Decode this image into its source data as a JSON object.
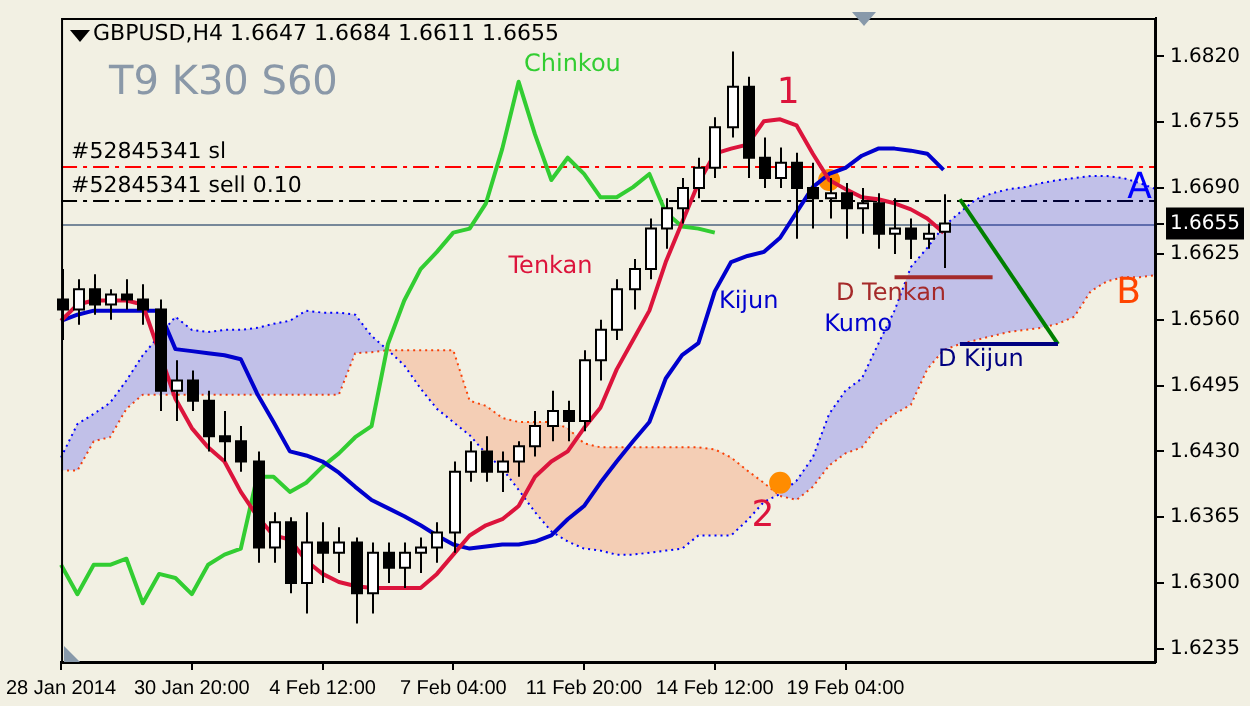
{
  "chart_data": {
    "type": "candlestick",
    "title": "GBPUSD,H4 1.6647 1.6684 1.6611 1.6655",
    "subtitle": "T9 K30 S60",
    "categories": [
      "28 Jan 2014",
      null,
      null,
      null,
      null,
      null,
      null,
      null,
      "30 Jan 20:00",
      null,
      null,
      null,
      null,
      null,
      null,
      null,
      "4 Feb 12:00",
      null,
      null,
      null,
      null,
      null,
      null,
      null,
      "7 Feb 04:00",
      null,
      null,
      null,
      null,
      null,
      null,
      null,
      "11 Feb 20:00",
      null,
      null,
      null,
      null,
      null,
      null,
      null,
      "14 Feb 12:00",
      null,
      null,
      null,
      null,
      null,
      null,
      null,
      "19 Feb 04:00",
      null,
      null,
      null,
      null,
      null,
      null,
      null,
      null,
      null,
      null,
      null,
      null,
      null,
      null,
      null,
      null,
      null,
      null,
      null
    ],
    "ohlc": [
      [
        1.658,
        1.661,
        1.654,
        1.657
      ],
      [
        1.657,
        1.66,
        1.6555,
        1.659
      ],
      [
        1.659,
        1.6605,
        1.6565,
        1.6575
      ],
      [
        1.6575,
        1.659,
        1.656,
        1.6585
      ],
      [
        1.6585,
        1.66,
        1.657,
        1.658
      ],
      [
        1.658,
        1.6595,
        1.6555,
        1.657
      ],
      [
        1.657,
        1.658,
        1.647,
        1.649
      ],
      [
        1.649,
        1.652,
        1.646,
        1.65
      ],
      [
        1.65,
        1.651,
        1.647,
        1.648
      ],
      [
        1.648,
        1.649,
        1.643,
        1.6445
      ],
      [
        1.6445,
        1.647,
        1.642,
        1.644
      ],
      [
        1.644,
        1.6455,
        1.641,
        1.642
      ],
      [
        1.642,
        1.643,
        1.632,
        1.6335
      ],
      [
        1.6335,
        1.637,
        1.632,
        1.636
      ],
      [
        1.636,
        1.6365,
        1.629,
        1.63
      ],
      [
        1.63,
        1.637,
        1.627,
        1.634
      ],
      [
        1.634,
        1.636,
        1.63,
        1.633
      ],
      [
        1.633,
        1.6355,
        1.631,
        1.634
      ],
      [
        1.634,
        1.6345,
        1.626,
        1.629
      ],
      [
        1.629,
        1.634,
        1.627,
        1.633
      ],
      [
        1.633,
        1.634,
        1.63,
        1.6315
      ],
      [
        1.6315,
        1.634,
        1.6295,
        1.633
      ],
      [
        1.633,
        1.6345,
        1.631,
        1.6335
      ],
      [
        1.6335,
        1.636,
        1.632,
        1.635
      ],
      [
        1.635,
        1.642,
        1.633,
        1.641
      ],
      [
        1.641,
        1.644,
        1.64,
        1.643
      ],
      [
        1.643,
        1.6445,
        1.64,
        1.641
      ],
      [
        1.641,
        1.643,
        1.639,
        1.642
      ],
      [
        1.642,
        1.644,
        1.6405,
        1.6435
      ],
      [
        1.6435,
        1.647,
        1.6425,
        1.6455
      ],
      [
        1.6455,
        1.649,
        1.644,
        1.647
      ],
      [
        1.647,
        1.648,
        1.644,
        1.646
      ],
      [
        1.646,
        1.653,
        1.645,
        1.652
      ],
      [
        1.652,
        1.656,
        1.65,
        1.655
      ],
      [
        1.655,
        1.66,
        1.654,
        1.659
      ],
      [
        1.659,
        1.662,
        1.657,
        1.661
      ],
      [
        1.661,
        1.666,
        1.66,
        1.665
      ],
      [
        1.665,
        1.668,
        1.663,
        1.667
      ],
      [
        1.667,
        1.67,
        1.6655,
        1.669
      ],
      [
        1.669,
        1.672,
        1.668,
        1.671
      ],
      [
        1.671,
        1.676,
        1.67,
        1.675
      ],
      [
        1.675,
        1.6825,
        1.674,
        1.679
      ],
      [
        1.679,
        1.68,
        1.67,
        1.672
      ],
      [
        1.672,
        1.674,
        1.669,
        1.67
      ],
      [
        1.67,
        1.673,
        1.669,
        1.6715
      ],
      [
        1.6715,
        1.6725,
        1.664,
        1.669
      ],
      [
        1.669,
        1.6715,
        1.665,
        1.668
      ],
      [
        1.668,
        1.67,
        1.666,
        1.6685
      ],
      [
        1.6685,
        1.6695,
        1.664,
        1.667
      ],
      [
        1.667,
        1.669,
        1.6645,
        1.6675
      ],
      [
        1.6675,
        1.6685,
        1.663,
        1.6645
      ],
      [
        1.6645,
        1.668,
        1.6625,
        1.665
      ],
      [
        1.665,
        1.666,
        1.662,
        1.664
      ],
      [
        1.664,
        1.6655,
        1.663,
        1.6645
      ],
      [
        1.6647,
        1.6684,
        1.6611,
        1.6655
      ],
      null,
      null,
      null,
      null,
      null,
      null,
      null,
      null,
      null,
      null,
      null,
      null,
      null
    ],
    "series": [
      {
        "name": "Tenkan",
        "type": "line",
        "color": "#dc143c",
        "values": [
          1.6559,
          1.6575,
          1.6579,
          1.6579,
          1.6579,
          1.6575,
          null,
          1.6482,
          1.6453,
          1.6434,
          1.642,
          1.639,
          1.6366,
          1.6347,
          1.6343,
          1.6322,
          1.6309,
          1.6301,
          1.6297,
          1.6295,
          1.6295,
          1.6295,
          1.6295,
          1.6309,
          1.6328,
          1.6347,
          1.6357,
          1.6363,
          1.6376,
          1.6405,
          1.642,
          1.643,
          1.6453,
          1.6473,
          1.6511,
          1.654,
          1.6569,
          1.6617,
          1.6656,
          1.6695,
          1.6724,
          1.6729,
          1.6733,
          1.6756,
          1.6758,
          1.6752,
          1.6724,
          1.6698,
          1.6689,
          1.6681,
          1.6679,
          1.6675,
          1.6669,
          1.666,
          1.6646,
          null,
          null,
          null,
          null,
          null,
          null,
          null,
          null,
          null,
          null,
          null,
          null,
          null
        ]
      },
      {
        "name": "Kijun",
        "type": "line",
        "color": "#0000cd",
        "values": [
          1.6559,
          1.6565,
          1.6569,
          1.6569,
          1.6569,
          1.6569,
          1.6569,
          1.6531,
          1.6529,
          1.6527,
          1.6525,
          1.6521,
          1.6487,
          1.6459,
          1.643,
          1.6426,
          1.642,
          1.6409,
          1.6395,
          1.6382,
          1.6374,
          1.6366,
          1.6357,
          1.6347,
          1.6338,
          1.6334,
          1.6336,
          1.6338,
          1.6338,
          1.6341,
          1.6347,
          1.6363,
          1.6376,
          1.6399,
          1.642,
          1.644,
          1.6459,
          1.6502,
          1.6525,
          1.6537,
          1.6588,
          1.6617,
          1.6623,
          1.6627,
          1.6641,
          1.6666,
          1.6691,
          1.6704,
          1.671,
          1.6722,
          1.6729,
          1.6729,
          1.6727,
          1.6724,
          1.6708,
          null,
          null,
          null,
          null,
          null,
          null,
          null,
          null,
          null,
          null,
          null,
          null,
          null
        ]
      },
      {
        "name": "Chinkou",
        "type": "line",
        "color": "#32cd32",
        "values": [
          1.6318,
          1.6289,
          1.6318,
          1.6318,
          1.6324,
          1.628,
          1.6309,
          1.6305,
          1.6289,
          1.6318,
          1.6328,
          1.6334,
          1.6405,
          1.6405,
          1.639,
          1.6399,
          1.6415,
          1.6428,
          1.6444,
          1.6455,
          1.6536,
          1.6579,
          1.661,
          1.6627,
          1.6646,
          1.665,
          1.6675,
          1.6729,
          1.6795,
          1.6743,
          1.6698,
          1.672,
          1.6704,
          1.6681,
          1.6681,
          1.6691,
          1.6704,
          1.6666,
          1.6652,
          1.665,
          1.6646,
          null,
          null,
          null,
          null,
          null,
          null,
          null,
          null,
          null,
          null,
          null,
          null,
          null,
          null,
          null,
          null,
          null,
          null,
          null,
          null,
          null,
          null,
          null,
          null,
          null,
          null,
          null
        ]
      },
      {
        "name": "A",
        "type": "line",
        "color": "#0000ff",
        "line_style": "dotted",
        "values": [
          1.6424,
          1.6457,
          1.6467,
          1.6478,
          1.65,
          1.6525,
          null,
          1.6563,
          1.655,
          1.6548,
          1.655,
          1.655,
          1.6552,
          1.6556,
          1.6559,
          1.6569,
          1.6567,
          1.6567,
          1.6565,
          1.6544,
          1.653,
          1.6515,
          1.6492,
          1.6472,
          1.6459,
          1.6446,
          1.6428,
          1.6413,
          1.6392,
          1.637,
          1.6351,
          1.6341,
          1.6334,
          1.6332,
          1.6328,
          1.6328,
          1.633,
          1.6332,
          1.6334,
          1.6347,
          1.6347,
          1.6347,
          1.6362,
          1.638,
          1.6388,
          1.6401,
          1.6424,
          1.6467,
          1.649,
          1.6502,
          1.6536,
          1.6569,
          1.6612,
          1.6631,
          1.6652,
          1.6666,
          1.6679,
          1.6685,
          1.6689,
          1.6691,
          1.6695,
          1.6698,
          1.67,
          1.6702,
          1.6702,
          1.67,
          1.6695,
          1.6689
        ]
      },
      {
        "name": "B",
        "type": "line",
        "color": "#ff4500",
        "line_style": "dotted",
        "values": [
          1.6411,
          1.6411,
          1.644,
          1.6444,
          1.6472,
          1.6486,
          1.6486,
          1.6486,
          1.6486,
          1.6486,
          1.6486,
          1.6486,
          1.6486,
          1.6486,
          1.6486,
          1.6486,
          1.6486,
          1.6486,
          1.6527,
          1.6528,
          1.653,
          1.653,
          1.653,
          1.653,
          1.653,
          1.648,
          1.6475,
          1.6463,
          1.6459,
          1.6459,
          1.6459,
          1.6453,
          1.6438,
          1.6434,
          1.6434,
          1.6434,
          1.6434,
          1.6434,
          1.6434,
          1.6434,
          1.6432,
          1.6424,
          1.6411,
          1.6399,
          1.6386,
          1.6382,
          1.6395,
          1.6416,
          1.6428,
          1.6434,
          1.6455,
          1.6467,
          1.6476,
          1.6511,
          1.653,
          1.6536,
          1.654,
          1.6544,
          1.6548,
          1.655,
          1.6552,
          1.6556,
          1.6563,
          1.6588,
          1.6598,
          1.6602,
          1.6602,
          1.6604
        ]
      },
      {
        "name": "D Tenkan",
        "type": "line",
        "color": "#a52a2a",
        "values": [
          null,
          null,
          null,
          null,
          null,
          null,
          null,
          null,
          null,
          null,
          null,
          null,
          null,
          null,
          null,
          null,
          null,
          null,
          null,
          null,
          null,
          null,
          null,
          null,
          null,
          null,
          null,
          null,
          null,
          null,
          null,
          null,
          null,
          null,
          null,
          null,
          null,
          null,
          null,
          null,
          null,
          null,
          null,
          null,
          null,
          null,
          null,
          null,
          null,
          null,
          null,
          1.6602,
          1.6602,
          1.6602,
          1.6602,
          1.6602,
          1.6602,
          1.6602,
          null,
          null,
          null,
          null,
          null,
          null,
          null,
          null,
          null,
          null
        ]
      },
      {
        "name": "D Kijun",
        "type": "line",
        "color": "#000080",
        "values": [
          null,
          null,
          null,
          null,
          null,
          null,
          null,
          null,
          null,
          null,
          null,
          null,
          null,
          null,
          null,
          null,
          null,
          null,
          null,
          null,
          null,
          null,
          null,
          null,
          null,
          null,
          null,
          null,
          null,
          null,
          null,
          null,
          null,
          null,
          null,
          null,
          null,
          null,
          null,
          null,
          null,
          null,
          null,
          null,
          null,
          null,
          null,
          null,
          null,
          null,
          null,
          null,
          null,
          null,
          null,
          1.6536,
          1.6536,
          1.6536,
          1.6536,
          1.6536,
          1.6536,
          1.6536,
          null,
          null,
          null,
          null,
          null,
          null
        ]
      },
      {
        "type": "line",
        "color": "#008000",
        "values": [
          null,
          null,
          null,
          null,
          null,
          null,
          null,
          null,
          null,
          null,
          null,
          null,
          null,
          null,
          null,
          null,
          null,
          null,
          null,
          null,
          null,
          null,
          null,
          null,
          null,
          null,
          null,
          null,
          null,
          null,
          null,
          null,
          null,
          null,
          null,
          null,
          null,
          null,
          null,
          null,
          null,
          null,
          null,
          null,
          null,
          null,
          null,
          null,
          null,
          null,
          null,
          null,
          null,
          null,
          null,
          1.6679,
          null,
          null,
          null,
          null,
          null,
          1.6536,
          null,
          null,
          null,
          null,
          null,
          null
        ]
      },
      {
        "type": "scatter",
        "color": "#ff8c00",
        "marker": "circle",
        "values": [
          null,
          null,
          null,
          null,
          null,
          null,
          null,
          null,
          null,
          null,
          null,
          null,
          null,
          null,
          null,
          null,
          null,
          null,
          null,
          null,
          null,
          null,
          null,
          null,
          null,
          null,
          null,
          null,
          null,
          null,
          null,
          null,
          null,
          null,
          null,
          null,
          null,
          null,
          null,
          null,
          null,
          null,
          null,
          null,
          1.6399,
          null,
          null,
          1.6698,
          null,
          null,
          null,
          null,
          null,
          null,
          null,
          null,
          null,
          null,
          null,
          null,
          null,
          null,
          null,
          null,
          null,
          null,
          null,
          null
        ]
      }
    ],
    "ylim": [
      1.6222,
      1.6858
    ],
    "yticks": [
      {
        "value": 1.6235,
        "label": "1.6235"
      },
      {
        "value": 1.63,
        "label": "1.6300"
      },
      {
        "value": 1.6365,
        "label": "1.6365"
      },
      {
        "value": 1.643,
        "label": "1.6430"
      },
      {
        "value": 1.6495,
        "label": "1.6495"
      },
      {
        "value": 1.656,
        "label": "1.6560"
      },
      {
        "value": 1.6625,
        "label": "1.6625"
      },
      {
        "value": 1.6655,
        "label": "1.6655"
      },
      {
        "value": 1.669,
        "label": "1.6690"
      },
      {
        "value": 1.6755,
        "label": "1.6755"
      },
      {
        "value": 1.682,
        "label": "1.6820"
      }
    ],
    "ref_lines": [
      {
        "axis": "y",
        "value": 1.6712,
        "label": "#52845341 sl",
        "color": "#ff0000",
        "line_style": "dashed"
      },
      {
        "axis": "y",
        "value": 1.6679,
        "label": "#52845341 sell 0.10",
        "color": "#000000",
        "line_style": "dashed"
      },
      {
        "axis": "y",
        "value": 1.6655,
        "color": "#778899",
        "line_style": "solid"
      }
    ],
    "annotations": [
      "Kumo",
      "1",
      "2"
    ],
    "grid": false,
    "legend": false
  }
}
